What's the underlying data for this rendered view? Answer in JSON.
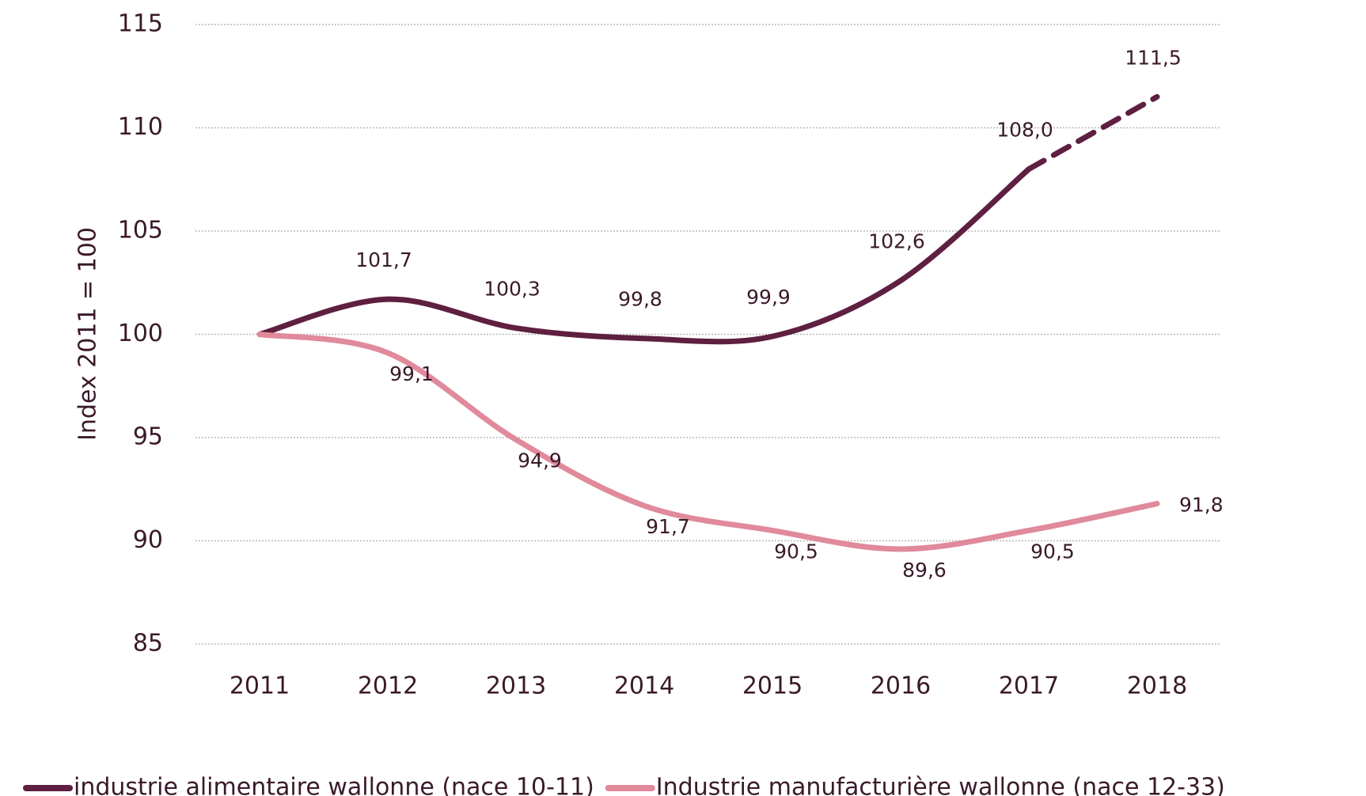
{
  "chart_data": {
    "type": "line",
    "y_label": "Index 2011 = 100",
    "categories": [
      "2011",
      "2012",
      "2013",
      "2014",
      "2015",
      "2016",
      "2017",
      "2018"
    ],
    "series": [
      {
        "name": "industrie alimentaire wallonne (nace 10-11)",
        "color": "#5e1f40",
        "values": [
          100,
          101.7,
          100.3,
          99.8,
          99.9,
          102.6,
          108.0,
          111.5
        ],
        "value_labels": [
          null,
          "101,7",
          "100,3",
          "99,8",
          "99,9",
          "102,6",
          "108,0",
          "111,5"
        ],
        "dash_from_index": 6
      },
      {
        "name": "Industrie manufacturière wallonne (nace 12-33)",
        "color": "#e08a9b",
        "values": [
          100,
          99.1,
          94.9,
          91.7,
          90.5,
          89.6,
          90.5,
          91.8
        ],
        "value_labels": [
          null,
          "99,1",
          "94,9",
          "91,7",
          "90,5",
          "89,6",
          "90,5",
          "91,8"
        ]
      }
    ],
    "ylim": [
      85,
      115
    ],
    "yticks": [
      85,
      90,
      95,
      100,
      105,
      110,
      115
    ],
    "grid": true
  }
}
